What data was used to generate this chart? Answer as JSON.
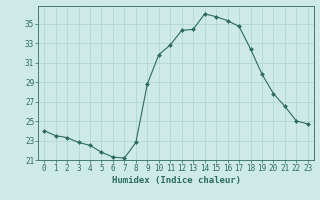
{
  "x": [
    0,
    1,
    2,
    3,
    4,
    5,
    6,
    7,
    8,
    9,
    10,
    11,
    12,
    13,
    14,
    15,
    16,
    17,
    18,
    19,
    20,
    21,
    22,
    23
  ],
  "y": [
    24.0,
    23.5,
    23.3,
    22.8,
    22.5,
    21.8,
    21.3,
    21.2,
    22.8,
    28.8,
    31.8,
    32.8,
    34.3,
    34.4,
    36.0,
    35.7,
    35.3,
    34.7,
    32.4,
    29.8,
    27.8,
    26.5,
    25.0,
    24.7
  ],
  "line_color": "#2d6b5e",
  "marker": "D",
  "marker_size": 2,
  "bg_color": "#ceeae7",
  "grid_color": "#afd4d0",
  "xlabel": "Humidex (Indice chaleur)",
  "xlim": [
    -0.5,
    23.5
  ],
  "ylim": [
    21,
    36.8
  ],
  "yticks": [
    21,
    23,
    25,
    27,
    29,
    31,
    33,
    35
  ],
  "xticks": [
    0,
    1,
    2,
    3,
    4,
    5,
    6,
    7,
    8,
    9,
    10,
    11,
    12,
    13,
    14,
    15,
    16,
    17,
    18,
    19,
    20,
    21,
    22,
    23
  ],
  "xlabel_fontsize": 6.5,
  "tick_fontsize": 5.5,
  "tick_color": "#2d6b5e",
  "axis_color": "#2d6b5e"
}
